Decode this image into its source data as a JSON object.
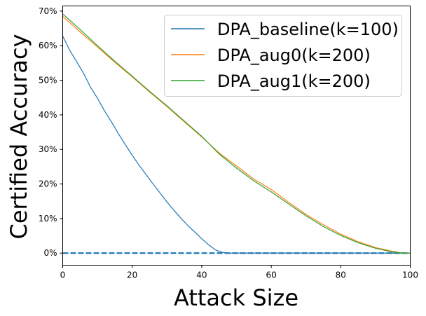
{
  "chart_data": {
    "type": "line",
    "xlabel": "Attack Size",
    "ylabel": "Certified Accuracy",
    "xlim": [
      0,
      100
    ],
    "ylim": [
      -3.5,
      71.5
    ],
    "x_ticks": [
      0,
      20,
      40,
      60,
      80,
      100
    ],
    "y_ticks": [
      0,
      10,
      20,
      30,
      40,
      50,
      60,
      70
    ],
    "x_tick_labels": [
      "0",
      "20",
      "40",
      "60",
      "80",
      "100"
    ],
    "y_tick_labels": [
      "0%",
      "10%",
      "20%",
      "30%",
      "40%",
      "50%",
      "60%",
      "70%"
    ],
    "grid": false,
    "legend_position": "top-right",
    "series": [
      {
        "name": "DPA_baseline(k=100)",
        "color": "#1f77b4",
        "x": [
          0,
          2,
          4,
          6,
          8,
          10,
          12,
          14,
          16,
          18,
          20,
          22,
          24,
          26,
          28,
          30,
          32,
          34,
          36,
          38,
          40,
          42,
          44,
          46,
          48,
          50,
          60,
          70,
          80,
          90,
          100
        ],
        "y": [
          62.8,
          58.7,
          55.4,
          52.0,
          48.0,
          44.8,
          41.2,
          38.0,
          34.6,
          31.4,
          28.3,
          25.4,
          22.7,
          20.0,
          17.4,
          14.8,
          12.4,
          10.1,
          8.0,
          6.1,
          4.2,
          2.4,
          0.9,
          0.2,
          0.0,
          0.0,
          0.0,
          0.0,
          0.0,
          0.0,
          0.0
        ]
      },
      {
        "name": "DPA_aug0(k=200)",
        "color": "#ff7f0e",
        "x": [
          0,
          5,
          10,
          15,
          20,
          25,
          30,
          35,
          40,
          45,
          50,
          55,
          60,
          65,
          70,
          75,
          80,
          85,
          90,
          95,
          98,
          100
        ],
        "y": [
          68.5,
          64.0,
          59.6,
          55.2,
          51.0,
          46.6,
          42.4,
          38.0,
          33.6,
          29.0,
          25.2,
          21.4,
          18.4,
          14.7,
          11.2,
          8.2,
          5.5,
          3.3,
          1.6,
          0.5,
          0.0,
          0.0
        ]
      },
      {
        "name": "DPA_aug1(k=200)",
        "color": "#2ca02c",
        "x": [
          0,
          5,
          10,
          15,
          20,
          25,
          30,
          35,
          40,
          45,
          50,
          55,
          60,
          65,
          70,
          75,
          80,
          85,
          90,
          95,
          98,
          100
        ],
        "y": [
          69.2,
          64.7,
          60.0,
          55.5,
          51.2,
          46.8,
          42.6,
          38.2,
          33.8,
          28.7,
          24.6,
          20.9,
          17.7,
          14.2,
          10.8,
          7.7,
          5.1,
          3.0,
          1.4,
          0.3,
          0.0,
          0.0
        ]
      }
    ],
    "reference_lines": [
      {
        "y": 0,
        "style": "dashed",
        "color": "#1f77b4"
      }
    ]
  }
}
